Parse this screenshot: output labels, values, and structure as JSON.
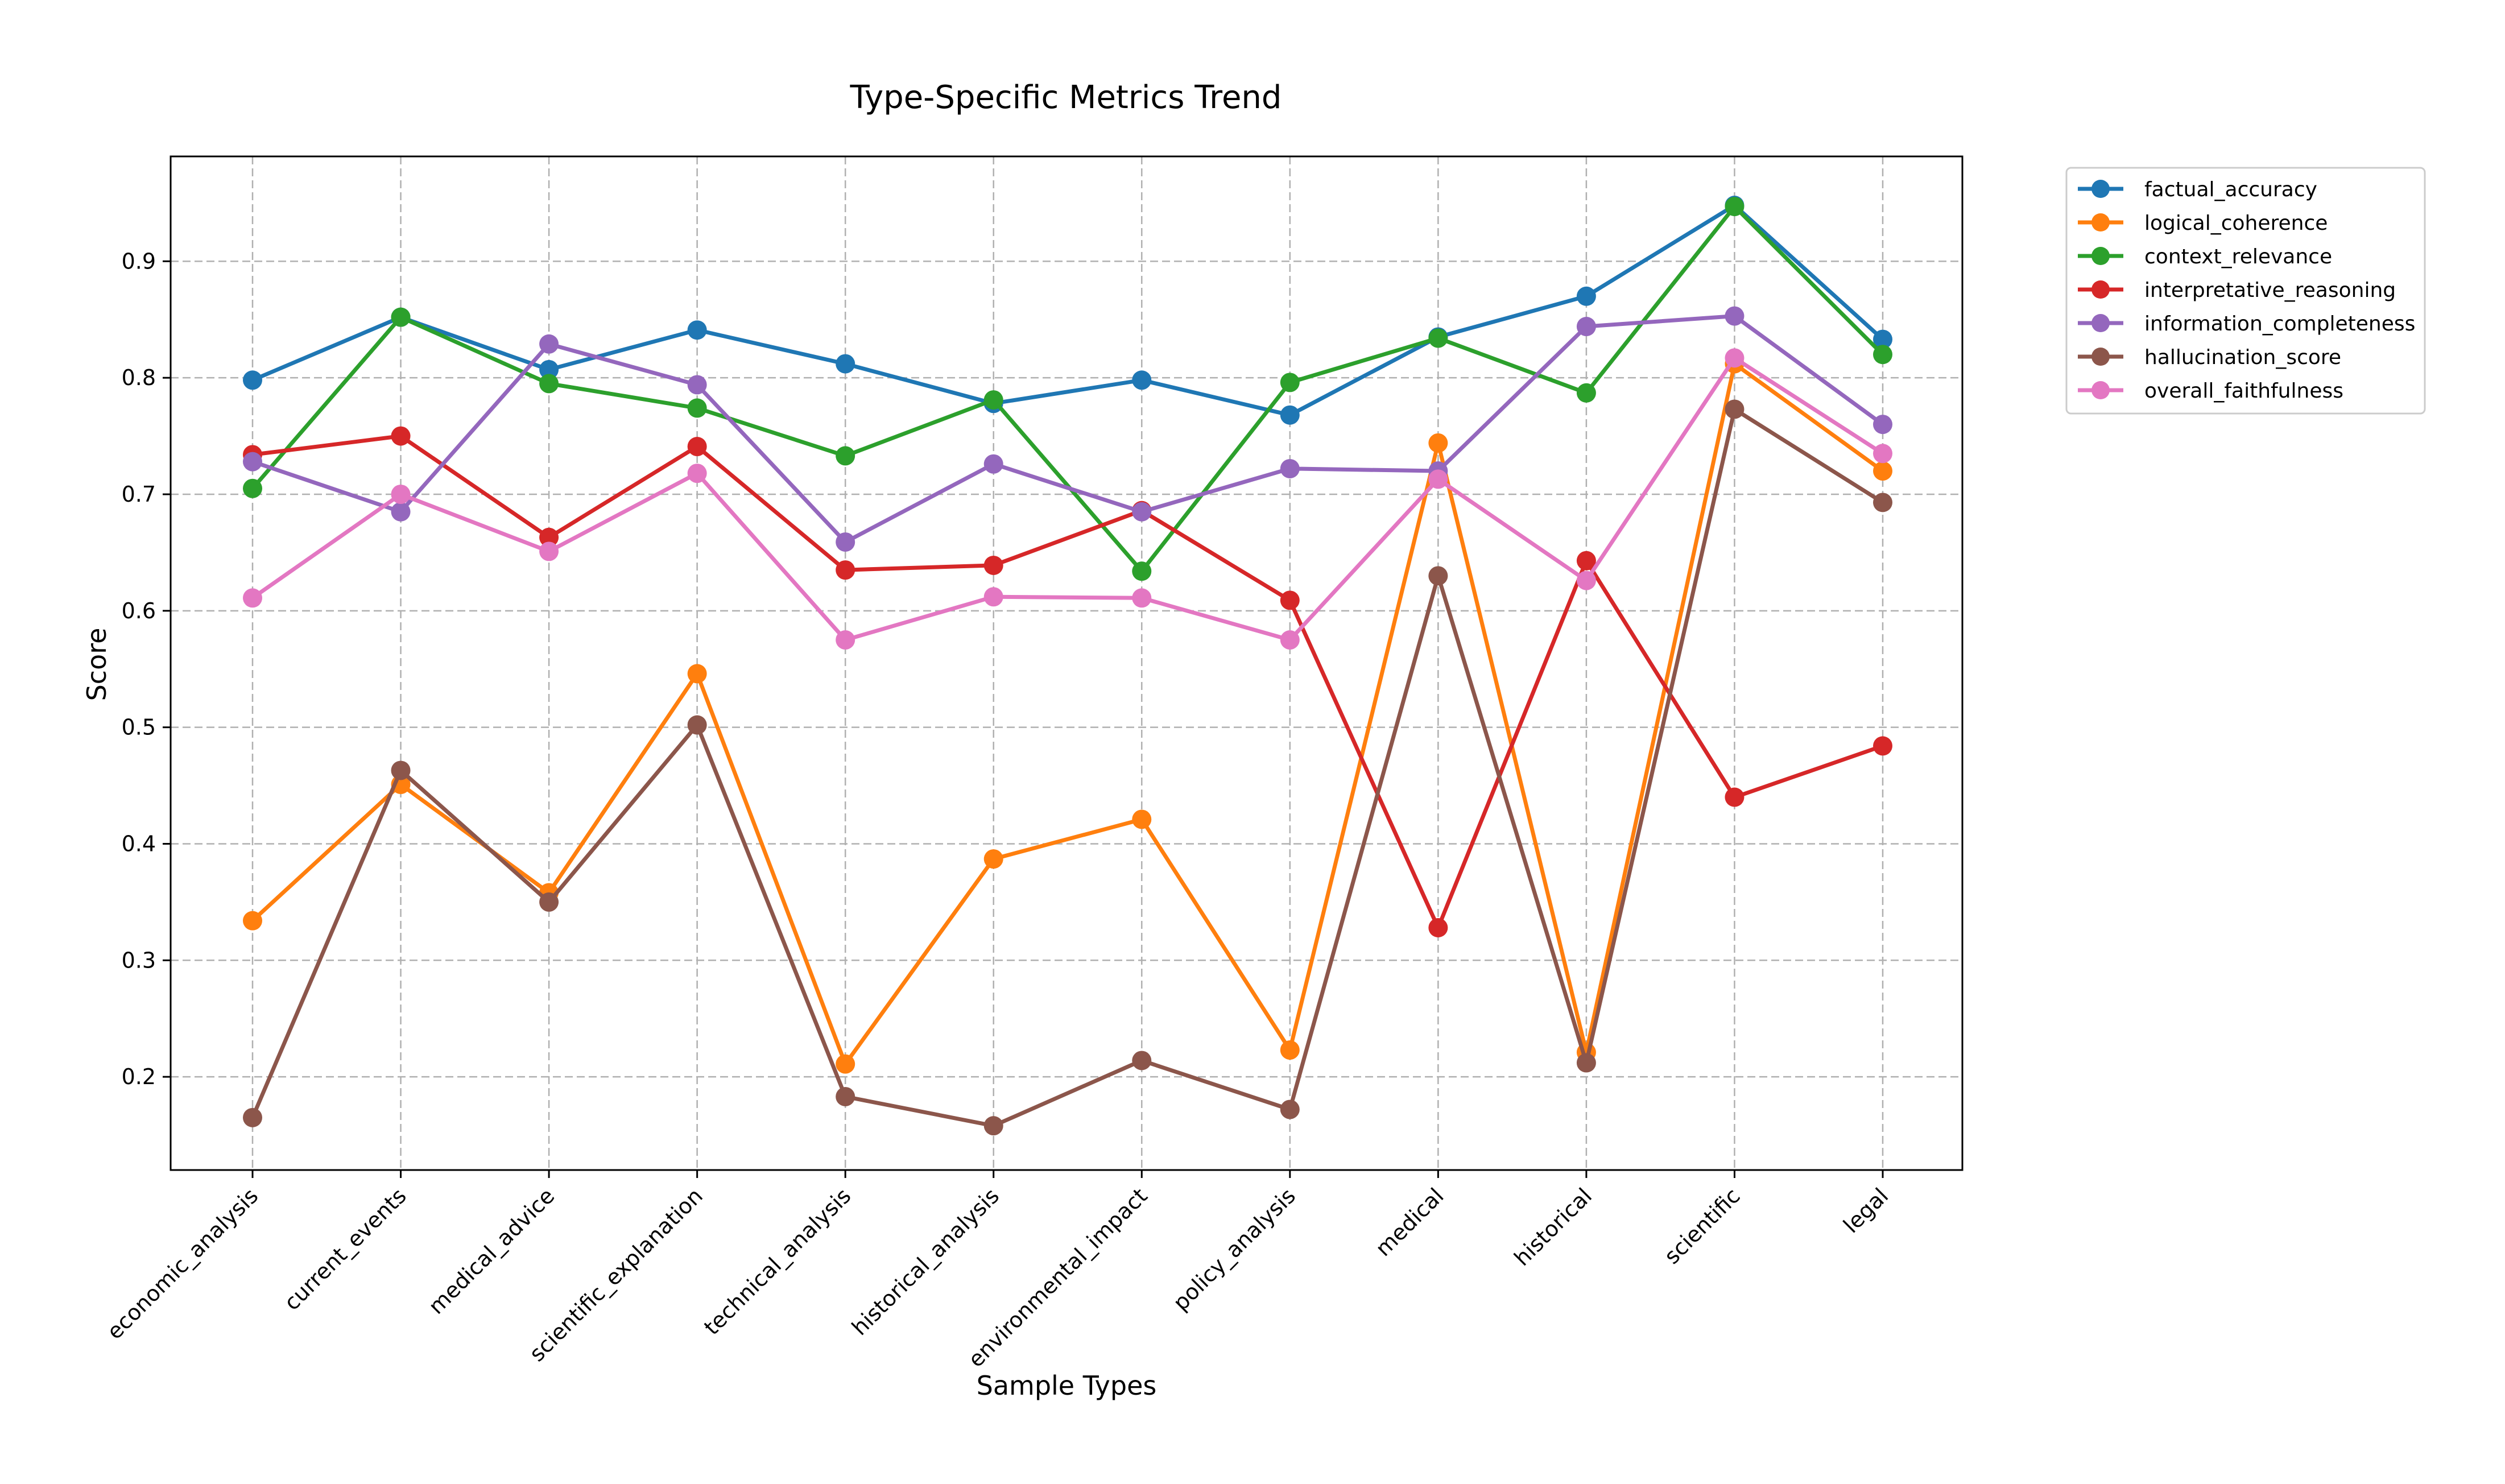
{
  "chart_data": {
    "type": "line",
    "title": "Type-Specific Metrics Trend",
    "xlabel": "Sample Types",
    "ylabel": "Score",
    "categories": [
      "economic_analysis",
      "current_events",
      "medical_advice",
      "scientific_explanation",
      "technical_analysis",
      "historical_analysis",
      "environmental_impact",
      "policy_analysis",
      "medical",
      "historical",
      "scientific",
      "legal"
    ],
    "yticks": [
      "0.2",
      "0.3",
      "0.4",
      "0.5",
      "0.6",
      "0.7",
      "0.8",
      "0.9"
    ],
    "ylim": [
      0.12,
      0.99
    ],
    "grid": true,
    "legend_position": "outside-top-right",
    "series": [
      {
        "name": "factual_accuracy",
        "color": "#1f77b4",
        "values": [
          0.798,
          0.852,
          0.807,
          0.841,
          0.812,
          0.778,
          0.798,
          0.768,
          0.835,
          0.87,
          0.948,
          0.833
        ]
      },
      {
        "name": "logical_coherence",
        "color": "#ff7f0e",
        "values": [
          0.334,
          0.451,
          0.358,
          0.546,
          0.211,
          0.387,
          0.421,
          0.223,
          0.744,
          0.221,
          0.812,
          0.72
        ]
      },
      {
        "name": "context_relevance",
        "color": "#2ca02c",
        "values": [
          0.705,
          0.852,
          0.795,
          0.774,
          0.733,
          0.781,
          0.634,
          0.796,
          0.834,
          0.787,
          0.947,
          0.82
        ]
      },
      {
        "name": "interpretative_reasoning",
        "color": "#d62728",
        "values": [
          0.734,
          0.75,
          0.663,
          0.741,
          0.635,
          0.639,
          0.686,
          0.609,
          0.328,
          0.643,
          0.44,
          0.484
        ]
      },
      {
        "name": "information_completeness",
        "color": "#9467bd",
        "values": [
          0.728,
          0.685,
          0.829,
          0.794,
          0.659,
          0.726,
          0.685,
          0.722,
          0.72,
          0.844,
          0.853,
          0.76
        ]
      },
      {
        "name": "hallucination_score",
        "color": "#8c564b",
        "values": [
          0.165,
          0.463,
          0.35,
          0.502,
          0.183,
          0.158,
          0.214,
          0.172,
          0.63,
          0.212,
          0.773,
          0.693
        ]
      },
      {
        "name": "overall_faithfulness",
        "color": "#e377c2",
        "values": [
          0.611,
          0.7,
          0.651,
          0.718,
          0.575,
          0.612,
          0.611,
          0.575,
          0.713,
          0.626,
          0.817,
          0.735
        ]
      }
    ]
  }
}
